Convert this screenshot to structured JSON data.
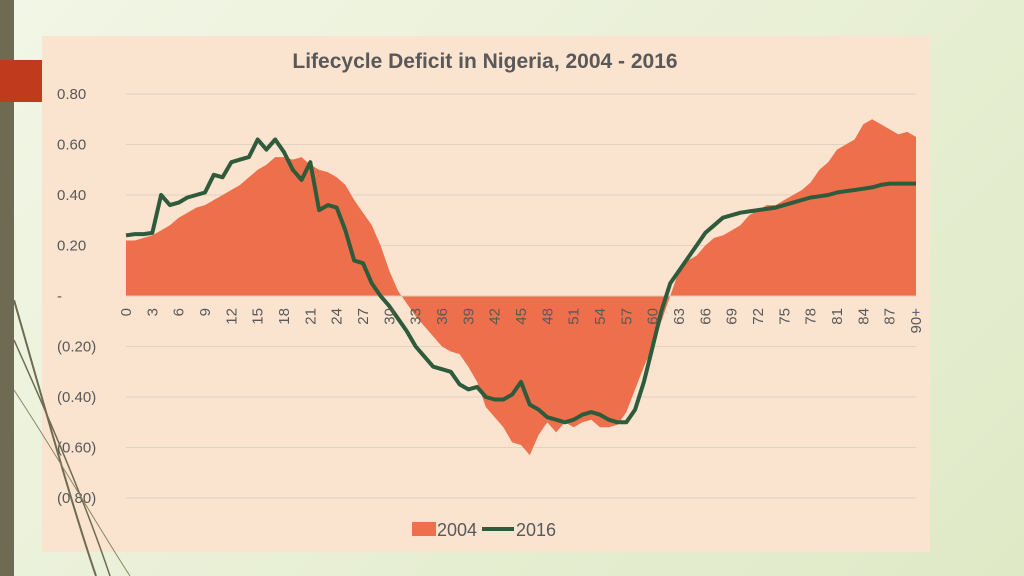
{
  "colors": {
    "series2004": "#ee6f4b",
    "series2016": "#2e5b3b",
    "panel": "#fae3cf",
    "grid": "#e3d2c2"
  },
  "chart_data": {
    "type": "area+line",
    "title": "Lifecycle Deficit in Nigeria, 2004 - 2016",
    "ylim": [
      -0.8,
      0.8
    ],
    "yticks": [
      0.8,
      0.6,
      0.4,
      0.2,
      0,
      -0.2,
      -0.4,
      -0.6,
      -0.8
    ],
    "ytick_labels": [
      "0.80",
      "0.60",
      "0.40",
      "0.20",
      "-",
      "(0.20)",
      "(0.40)",
      "(0.60)",
      "(0.80)"
    ],
    "xtick_labels": [
      "0",
      "3",
      "6",
      "9",
      "12",
      "15",
      "18",
      "21",
      "24",
      "27",
      "30",
      "33",
      "36",
      "39",
      "42",
      "45",
      "48",
      "51",
      "54",
      "57",
      "60",
      "63",
      "66",
      "69",
      "72",
      "75",
      "78",
      "81",
      "84",
      "87",
      "90+"
    ],
    "x": [
      0,
      1,
      2,
      3,
      4,
      5,
      6,
      7,
      8,
      9,
      10,
      11,
      12,
      13,
      14,
      15,
      16,
      17,
      18,
      19,
      20,
      21,
      22,
      23,
      24,
      25,
      26,
      27,
      28,
      29,
      30,
      31,
      32,
      33,
      34,
      35,
      36,
      37,
      38,
      39,
      40,
      41,
      42,
      43,
      44,
      45,
      46,
      47,
      48,
      49,
      50,
      51,
      52,
      53,
      54,
      55,
      56,
      57,
      58,
      59,
      60,
      61,
      62,
      63,
      64,
      65,
      66,
      67,
      68,
      69,
      70,
      71,
      72,
      73,
      74,
      75,
      76,
      77,
      78,
      79,
      80,
      81,
      82,
      83,
      84,
      85,
      86,
      87,
      88,
      89,
      90
    ],
    "series": [
      {
        "name": "2004",
        "kind": "area",
        "values": [
          0.22,
          0.22,
          0.23,
          0.24,
          0.26,
          0.28,
          0.31,
          0.33,
          0.35,
          0.36,
          0.38,
          0.4,
          0.42,
          0.44,
          0.47,
          0.5,
          0.52,
          0.55,
          0.55,
          0.54,
          0.55,
          0.52,
          0.5,
          0.49,
          0.47,
          0.44,
          0.38,
          0.33,
          0.28,
          0.2,
          0.1,
          0.02,
          -0.03,
          -0.08,
          -0.12,
          -0.16,
          -0.2,
          -0.22,
          -0.23,
          -0.28,
          -0.34,
          -0.44,
          -0.48,
          -0.52,
          -0.58,
          -0.59,
          -0.63,
          -0.55,
          -0.5,
          -0.54,
          -0.5,
          -0.52,
          -0.5,
          -0.49,
          -0.52,
          -0.52,
          -0.51,
          -0.46,
          -0.37,
          -0.28,
          -0.2,
          -0.1,
          0.0,
          0.1,
          0.14,
          0.16,
          0.2,
          0.23,
          0.24,
          0.26,
          0.28,
          0.32,
          0.34,
          0.36,
          0.36,
          0.38,
          0.4,
          0.42,
          0.45,
          0.5,
          0.53,
          0.58,
          0.6,
          0.62,
          0.68,
          0.7,
          0.68,
          0.66,
          0.64,
          0.65,
          0.63
        ]
      },
      {
        "name": "2016",
        "kind": "line",
        "values": [
          0.24,
          0.245,
          0.245,
          0.25,
          0.4,
          0.36,
          0.37,
          0.39,
          0.4,
          0.41,
          0.48,
          0.47,
          0.53,
          0.54,
          0.55,
          0.62,
          0.58,
          0.62,
          0.57,
          0.5,
          0.46,
          0.53,
          0.34,
          0.36,
          0.35,
          0.26,
          0.14,
          0.13,
          0.05,
          0.0,
          -0.04,
          -0.09,
          -0.14,
          -0.2,
          -0.24,
          -0.28,
          -0.29,
          -0.3,
          -0.35,
          -0.37,
          -0.36,
          -0.4,
          -0.41,
          -0.41,
          -0.39,
          -0.34,
          -0.43,
          -0.45,
          -0.48,
          -0.49,
          -0.5,
          -0.49,
          -0.47,
          -0.46,
          -0.47,
          -0.49,
          -0.5,
          -0.5,
          -0.45,
          -0.34,
          -0.2,
          -0.06,
          0.05,
          0.1,
          0.15,
          0.2,
          0.25,
          0.28,
          0.31,
          0.32,
          0.33,
          0.335,
          0.34,
          0.345,
          0.35,
          0.36,
          0.37,
          0.38,
          0.39,
          0.395,
          0.4,
          0.41,
          0.415,
          0.42,
          0.425,
          0.43,
          0.44,
          0.445,
          0.445,
          0.445,
          0.445
        ]
      }
    ],
    "legend": {
      "position": "bottom",
      "entries": [
        "2004",
        "2016"
      ]
    },
    "grid": true
  }
}
